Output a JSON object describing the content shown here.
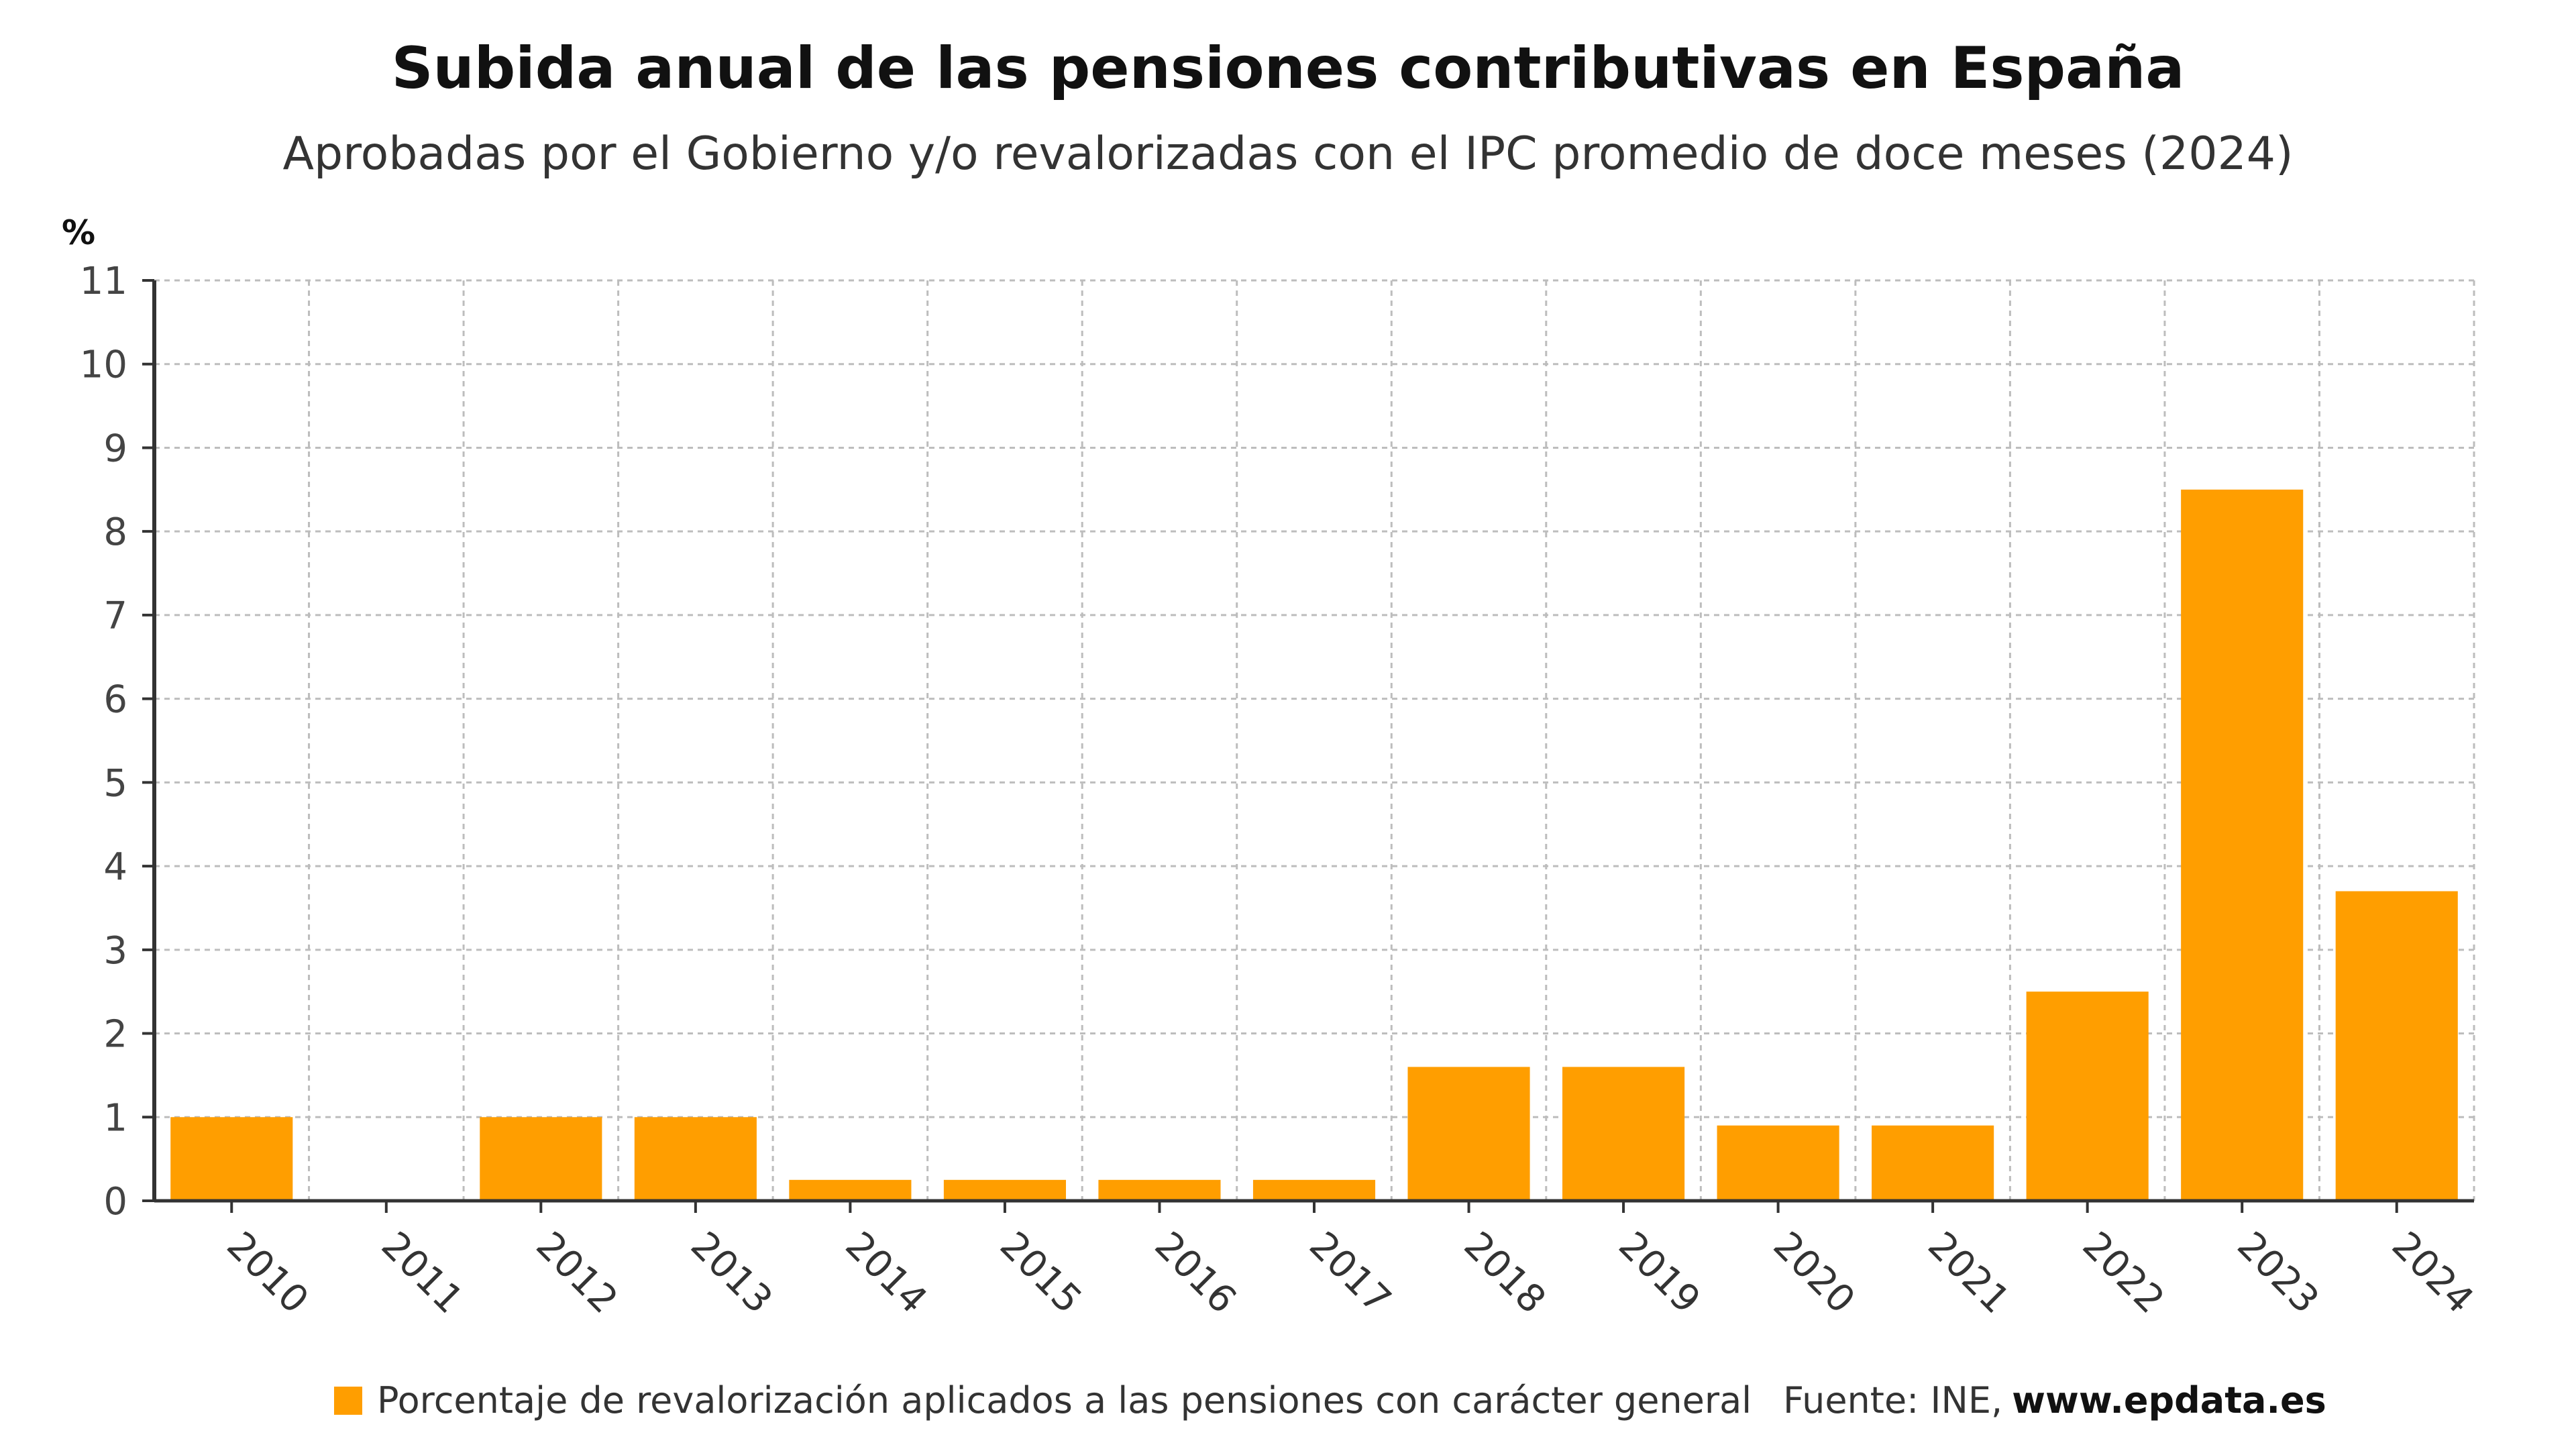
{
  "title": "Subida anual de las pensiones contributivas en España",
  "subtitle": "Aprobadas por el Gobierno y/o revalorizadas con el IPC promedio de doce meses (2024)",
  "unit_label": "%",
  "legend_label": "Porcentaje de revalorización aplicados a las pensiones con carácter general",
  "source": {
    "label": "Fuente: INE,",
    "site": "www.epdata.es"
  },
  "colors": {
    "bar": "#ff9e00",
    "grid": "#bdbdbd",
    "axis": "#333333"
  },
  "chart_data": {
    "type": "bar",
    "title": "Subida anual de las pensiones contributivas en España",
    "subtitle": "Aprobadas por el Gobierno y/o revalorizadas con el IPC promedio de doce meses (2024)",
    "ylabel": "%",
    "xlabel": "",
    "ylim": [
      0,
      11
    ],
    "yticks": [
      0,
      1,
      2,
      3,
      4,
      5,
      6,
      7,
      8,
      9,
      10,
      11
    ],
    "grid": true,
    "legend_position": "bottom",
    "categories": [
      "2010",
      "2011",
      "2012",
      "2013",
      "2014",
      "2015",
      "2016",
      "2017",
      "2018",
      "2019",
      "2020",
      "2021",
      "2022",
      "2023",
      "2024"
    ],
    "series": [
      {
        "name": "Porcentaje de revalorización aplicados a las pensiones con carácter general",
        "values": [
          1,
          0,
          1,
          1,
          0.25,
          0.25,
          0.25,
          0.25,
          1.6,
          1.6,
          0.9,
          0.9,
          2.5,
          8.5,
          3.7
        ]
      }
    ]
  }
}
